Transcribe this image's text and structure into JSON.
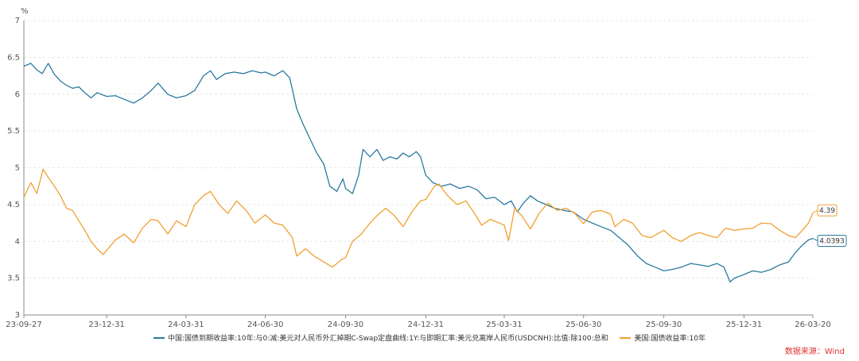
{
  "colors": {
    "blue": "#2a7aa0",
    "orange": "#f0a030",
    "source_red": "#e03030"
  },
  "chart_data": {
    "type": "line",
    "ylabel": "%",
    "ylim": [
      3,
      7
    ],
    "yticks": [
      "3",
      "3.5",
      "4",
      "4.5",
      "5",
      "5.5",
      "6",
      "6.5",
      "7"
    ],
    "xlim": [
      "2023-09-27",
      "2026-03-20"
    ],
    "xticks": [
      {
        "date": "2023-09-27",
        "label": "23-09-27"
      },
      {
        "date": "2023-12-31",
        "label": "23-12-31"
      },
      {
        "date": "2024-03-31",
        "label": "24-03-31"
      },
      {
        "date": "2024-06-30",
        "label": "24-06-30"
      },
      {
        "date": "2024-09-30",
        "label": "24-09-30"
      },
      {
        "date": "2024-12-31",
        "label": "24-12-31"
      },
      {
        "date": "2025-03-31",
        "label": "25-03-31"
      },
      {
        "date": "2025-06-30",
        "label": "25-06-30"
      },
      {
        "date": "2025-09-30",
        "label": "25-09-30"
      },
      {
        "date": "2025-12-31",
        "label": "25-12-31"
      },
      {
        "date": "2026-03-20",
        "label": "26-03-20"
      }
    ],
    "grid": true,
    "legend_position": "bottom",
    "series": [
      {
        "name": "中国:国债到期收益率:10年:与0:减:美元对人民币外汇掉期C-Swap定盘曲线:1Y:与即期汇率:美元兑离岸人民币(USDCNH):比值:除100:总和",
        "color": "#2a7aa0",
        "end_label": "4.0393",
        "points": [
          [
            "2023-09-27",
            6.38
          ],
          [
            "2023-10-05",
            6.42
          ],
          [
            "2023-10-12",
            6.33
          ],
          [
            "2023-10-18",
            6.28
          ],
          [
            "2023-10-25",
            6.42
          ],
          [
            "2023-11-01",
            6.27
          ],
          [
            "2023-11-08",
            6.18
          ],
          [
            "2023-11-15",
            6.12
          ],
          [
            "2023-11-22",
            6.08
          ],
          [
            "2023-11-29",
            6.1
          ],
          [
            "2023-12-06",
            6.02
          ],
          [
            "2023-12-13",
            5.95
          ],
          [
            "2023-12-20",
            6.02
          ],
          [
            "2023-12-31",
            5.97
          ],
          [
            "2024-01-10",
            5.98
          ],
          [
            "2024-01-20",
            5.93
          ],
          [
            "2024-01-31",
            5.88
          ],
          [
            "2024-02-10",
            5.95
          ],
          [
            "2024-02-20",
            6.05
          ],
          [
            "2024-02-28",
            6.15
          ],
          [
            "2024-03-10",
            6.0
          ],
          [
            "2024-03-20",
            5.95
          ],
          [
            "2024-03-31",
            5.98
          ],
          [
            "2024-04-10",
            6.05
          ],
          [
            "2024-04-20",
            6.25
          ],
          [
            "2024-04-28",
            6.32
          ],
          [
            "2024-05-05",
            6.2
          ],
          [
            "2024-05-15",
            6.28
          ],
          [
            "2024-05-25",
            6.3
          ],
          [
            "2024-06-05",
            6.28
          ],
          [
            "2024-06-15",
            6.32
          ],
          [
            "2024-06-25",
            6.29
          ],
          [
            "2024-06-30",
            6.3
          ],
          [
            "2024-07-10",
            6.25
          ],
          [
            "2024-07-20",
            6.32
          ],
          [
            "2024-07-28",
            6.22
          ],
          [
            "2024-08-05",
            5.8
          ],
          [
            "2024-08-12",
            5.6
          ],
          [
            "2024-08-20",
            5.4
          ],
          [
            "2024-08-28",
            5.2
          ],
          [
            "2024-09-05",
            5.05
          ],
          [
            "2024-09-12",
            4.75
          ],
          [
            "2024-09-20",
            4.68
          ],
          [
            "2024-09-27",
            4.85
          ],
          [
            "2024-09-30",
            4.72
          ],
          [
            "2024-10-08",
            4.65
          ],
          [
            "2024-10-15",
            4.9
          ],
          [
            "2024-10-20",
            5.25
          ],
          [
            "2024-10-28",
            5.15
          ],
          [
            "2024-11-05",
            5.25
          ],
          [
            "2024-11-12",
            5.1
          ],
          [
            "2024-11-20",
            5.15
          ],
          [
            "2024-11-28",
            5.12
          ],
          [
            "2024-12-05",
            5.2
          ],
          [
            "2024-12-12",
            5.15
          ],
          [
            "2024-12-20",
            5.22
          ],
          [
            "2024-12-25",
            5.15
          ],
          [
            "2024-12-31",
            4.9
          ],
          [
            "2025-01-08",
            4.8
          ],
          [
            "2025-01-18",
            4.75
          ],
          [
            "2025-01-28",
            4.78
          ],
          [
            "2025-02-08",
            4.72
          ],
          [
            "2025-02-18",
            4.75
          ],
          [
            "2025-02-28",
            4.7
          ],
          [
            "2025-03-10",
            4.58
          ],
          [
            "2025-03-20",
            4.6
          ],
          [
            "2025-03-31",
            4.5
          ],
          [
            "2025-04-08",
            4.55
          ],
          [
            "2025-04-15",
            4.4
          ],
          [
            "2025-04-22",
            4.52
          ],
          [
            "2025-04-30",
            4.62
          ],
          [
            "2025-05-08",
            4.55
          ],
          [
            "2025-05-18",
            4.5
          ],
          [
            "2025-05-28",
            4.45
          ],
          [
            "2025-06-08",
            4.42
          ],
          [
            "2025-06-18",
            4.4
          ],
          [
            "2025-06-30",
            4.3
          ],
          [
            "2025-07-10",
            4.25
          ],
          [
            "2025-07-20",
            4.2
          ],
          [
            "2025-07-31",
            4.15
          ],
          [
            "2025-08-10",
            4.05
          ],
          [
            "2025-08-20",
            3.95
          ],
          [
            "2025-08-31",
            3.8
          ],
          [
            "2025-09-10",
            3.7
          ],
          [
            "2025-09-20",
            3.65
          ],
          [
            "2025-09-30",
            3.6
          ],
          [
            "2025-10-10",
            3.62
          ],
          [
            "2025-10-20",
            3.65
          ],
          [
            "2025-10-31",
            3.7
          ],
          [
            "2025-11-10",
            3.68
          ],
          [
            "2025-11-20",
            3.66
          ],
          [
            "2025-11-30",
            3.7
          ],
          [
            "2025-12-08",
            3.65
          ],
          [
            "2025-12-15",
            3.45
          ],
          [
            "2025-12-20",
            3.5
          ],
          [
            "2025-12-31",
            3.55
          ],
          [
            "2026-01-10",
            3.6
          ],
          [
            "2026-01-20",
            3.58
          ],
          [
            "2026-01-31",
            3.62
          ],
          [
            "2026-02-10",
            3.68
          ],
          [
            "2026-02-20",
            3.72
          ],
          [
            "2026-02-28",
            3.85
          ],
          [
            "2026-03-08",
            3.95
          ],
          [
            "2026-03-15",
            4.02
          ],
          [
            "2026-03-20",
            4.04
          ]
        ]
      },
      {
        "name": "美国:国债收益率:10年",
        "color": "#f0a030",
        "end_label": "4.39",
        "points": [
          [
            "2023-09-27",
            4.6
          ],
          [
            "2023-10-05",
            4.8
          ],
          [
            "2023-10-12",
            4.65
          ],
          [
            "2023-10-19",
            4.98
          ],
          [
            "2023-10-26",
            4.85
          ],
          [
            "2023-11-01",
            4.75
          ],
          [
            "2023-11-08",
            4.62
          ],
          [
            "2023-11-15",
            4.45
          ],
          [
            "2023-11-22",
            4.42
          ],
          [
            "2023-11-29",
            4.28
          ],
          [
            "2023-12-06",
            4.15
          ],
          [
            "2023-12-13",
            4.0
          ],
          [
            "2023-12-20",
            3.9
          ],
          [
            "2023-12-27",
            3.82
          ],
          [
            "2023-12-31",
            3.88
          ],
          [
            "2024-01-10",
            4.02
          ],
          [
            "2024-01-20",
            4.1
          ],
          [
            "2024-01-31",
            3.98
          ],
          [
            "2024-02-10",
            4.18
          ],
          [
            "2024-02-20",
            4.3
          ],
          [
            "2024-02-28",
            4.28
          ],
          [
            "2024-03-10",
            4.1
          ],
          [
            "2024-03-20",
            4.28
          ],
          [
            "2024-03-31",
            4.2
          ],
          [
            "2024-04-10",
            4.5
          ],
          [
            "2024-04-20",
            4.62
          ],
          [
            "2024-04-28",
            4.68
          ],
          [
            "2024-05-08",
            4.5
          ],
          [
            "2024-05-18",
            4.38
          ],
          [
            "2024-05-28",
            4.55
          ],
          [
            "2024-06-08",
            4.42
          ],
          [
            "2024-06-18",
            4.25
          ],
          [
            "2024-06-30",
            4.36
          ],
          [
            "2024-07-10",
            4.25
          ],
          [
            "2024-07-20",
            4.22
          ],
          [
            "2024-07-31",
            4.05
          ],
          [
            "2024-08-05",
            3.8
          ],
          [
            "2024-08-15",
            3.9
          ],
          [
            "2024-08-25",
            3.8
          ],
          [
            "2024-09-05",
            3.72
          ],
          [
            "2024-09-15",
            3.65
          ],
          [
            "2024-09-25",
            3.75
          ],
          [
            "2024-09-30",
            3.78
          ],
          [
            "2024-10-08",
            4.0
          ],
          [
            "2024-10-18",
            4.1
          ],
          [
            "2024-10-28",
            4.25
          ],
          [
            "2024-11-05",
            4.35
          ],
          [
            "2024-11-15",
            4.45
          ],
          [
            "2024-11-25",
            4.35
          ],
          [
            "2024-12-05",
            4.2
          ],
          [
            "2024-12-15",
            4.4
          ],
          [
            "2024-12-25",
            4.55
          ],
          [
            "2024-12-31",
            4.57
          ],
          [
            "2025-01-10",
            4.75
          ],
          [
            "2025-01-15",
            4.78
          ],
          [
            "2025-01-25",
            4.62
          ],
          [
            "2025-02-05",
            4.5
          ],
          [
            "2025-02-15",
            4.55
          ],
          [
            "2025-02-25",
            4.38
          ],
          [
            "2025-03-05",
            4.22
          ],
          [
            "2025-03-15",
            4.3
          ],
          [
            "2025-03-31",
            4.22
          ],
          [
            "2025-04-05",
            4.01
          ],
          [
            "2025-04-12",
            4.45
          ],
          [
            "2025-04-20",
            4.35
          ],
          [
            "2025-04-30",
            4.17
          ],
          [
            "2025-05-10",
            4.38
          ],
          [
            "2025-05-20",
            4.52
          ],
          [
            "2025-05-31",
            4.42
          ],
          [
            "2025-06-10",
            4.45
          ],
          [
            "2025-06-20",
            4.38
          ],
          [
            "2025-06-30",
            4.24
          ],
          [
            "2025-07-10",
            4.4
          ],
          [
            "2025-07-20",
            4.42
          ],
          [
            "2025-07-31",
            4.37
          ],
          [
            "2025-08-05",
            4.2
          ],
          [
            "2025-08-15",
            4.3
          ],
          [
            "2025-08-25",
            4.25
          ],
          [
            "2025-09-05",
            4.08
          ],
          [
            "2025-09-15",
            4.05
          ],
          [
            "2025-09-30",
            4.15
          ],
          [
            "2025-10-10",
            4.05
          ],
          [
            "2025-10-20",
            4.0
          ],
          [
            "2025-10-31",
            4.08
          ],
          [
            "2025-11-10",
            4.12
          ],
          [
            "2025-11-20",
            4.08
          ],
          [
            "2025-11-30",
            4.05
          ],
          [
            "2025-12-10",
            4.18
          ],
          [
            "2025-12-20",
            4.15
          ],
          [
            "2025-12-31",
            4.17
          ],
          [
            "2026-01-10",
            4.18
          ],
          [
            "2026-01-20",
            4.25
          ],
          [
            "2026-01-31",
            4.24
          ],
          [
            "2026-02-10",
            4.15
          ],
          [
            "2026-02-20",
            4.08
          ],
          [
            "2026-02-28",
            4.05
          ],
          [
            "2026-03-08",
            4.15
          ],
          [
            "2026-03-15",
            4.25
          ],
          [
            "2026-03-20",
            4.39
          ]
        ]
      }
    ]
  },
  "legend": {
    "blue_label": "中国:国债到期收益率:10年:与0:减:美元对人民币外汇掉期C-Swap定盘曲线:1Y:与即期汇率:美元兑离岸人民币(USDCNH):比值:除100:总和",
    "orange_label": "美国:国债收益率:10年"
  },
  "source": "数据来源：Wind"
}
